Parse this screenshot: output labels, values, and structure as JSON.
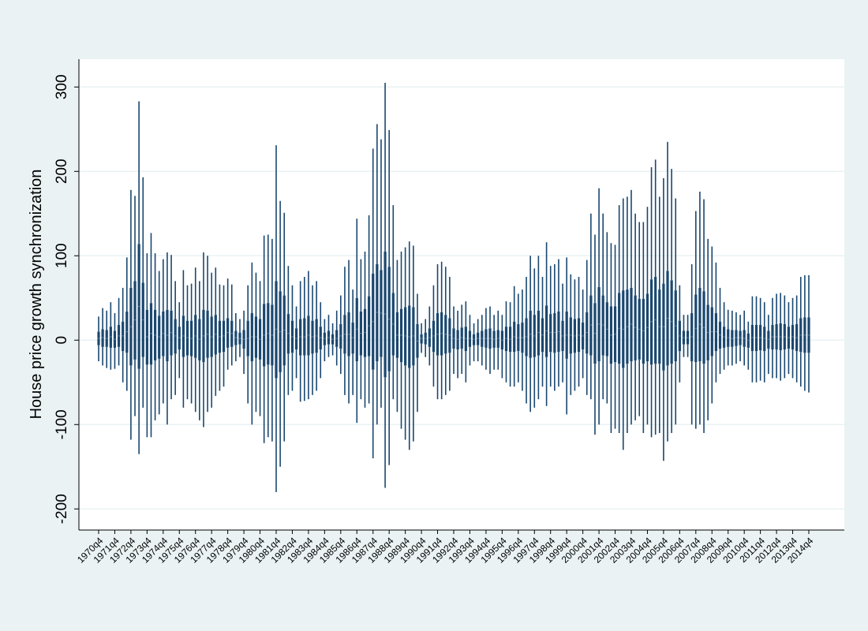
{
  "chart_data": {
    "type": "box",
    "ylabel": "House price growth synchronization",
    "color": "#1a476f",
    "grid": true,
    "ylim": [
      -225,
      333
    ],
    "yticks": [
      -200,
      -100,
      0,
      100,
      200,
      300
    ],
    "categories": [
      "1970q4",
      null,
      null,
      null,
      "1971q4",
      null,
      null,
      null,
      "1972q4",
      null,
      null,
      null,
      "1973q4",
      null,
      null,
      null,
      "1974q4",
      null,
      null,
      null,
      "1975q4",
      null,
      null,
      null,
      "1976q4",
      null,
      null,
      null,
      "1977q4",
      null,
      null,
      null,
      "1978q4",
      null,
      null,
      null,
      "1979q4",
      null,
      null,
      null,
      "1980q4",
      null,
      null,
      null,
      "1981q4",
      null,
      null,
      null,
      "1982q4",
      null,
      null,
      null,
      "1983q4",
      null,
      null,
      null,
      "1984q4",
      null,
      null,
      null,
      "1985q4",
      null,
      null,
      null,
      "1986q4",
      null,
      null,
      null,
      "1987q4",
      null,
      null,
      null,
      "1988q4",
      null,
      null,
      null,
      "1989q4",
      null,
      null,
      null,
      "1990q4",
      null,
      null,
      null,
      "1991q4",
      null,
      null,
      null,
      "1992q4",
      null,
      null,
      null,
      "1993q4",
      null,
      null,
      null,
      "1994q4",
      null,
      null,
      null,
      "1995q4",
      null,
      null,
      null,
      "1996q4",
      null,
      null,
      null,
      "1997q4",
      null,
      null,
      null,
      "1998q4",
      null,
      null,
      null,
      "1999q4",
      null,
      null,
      null,
      "2000q4",
      null,
      null,
      null,
      "2001q4",
      null,
      null,
      null,
      "2002q4",
      null,
      null,
      null,
      "2003q4",
      null,
      null,
      null,
      "2004q4",
      null,
      null,
      null,
      "2005q4",
      null,
      null,
      null,
      "2006q4",
      null,
      null,
      null,
      "2007q4",
      null,
      null,
      null,
      "2008q4",
      null,
      null,
      null,
      "2009q4",
      null,
      null,
      null,
      "2010q4",
      null,
      null,
      null,
      "2011q4",
      null,
      null,
      null,
      "2012q4",
      null,
      null,
      null,
      "2013q4",
      null,
      null,
      null,
      "2014q4"
    ],
    "max": [
      28,
      38,
      35,
      45,
      32,
      50,
      62,
      98,
      178,
      171,
      283,
      193,
      103,
      127,
      103,
      82,
      96,
      104,
      101,
      70,
      45,
      83,
      65,
      67,
      86,
      70,
      104,
      100,
      80,
      86,
      66,
      65,
      73,
      66,
      32,
      25,
      35,
      65,
      92,
      80,
      70,
      124,
      125,
      120,
      231,
      165,
      151,
      88,
      65,
      40,
      70,
      75,
      82,
      65,
      70,
      45,
      25,
      30,
      20,
      35,
      53,
      87,
      95,
      60,
      144,
      96,
      105,
      148,
      227,
      256,
      238,
      305,
      249,
      160,
      95,
      105,
      110,
      117,
      112,
      55,
      20,
      25,
      40,
      65,
      90,
      93,
      87,
      75,
      40,
      35,
      42,
      46,
      30,
      20,
      25,
      30,
      38,
      40,
      30,
      35,
      30,
      46,
      45,
      64,
      55,
      60,
      75,
      100,
      85,
      100,
      75,
      116,
      88,
      90,
      96,
      67,
      98,
      78,
      72,
      75,
      60,
      95,
      150,
      125,
      180,
      150,
      128,
      115,
      113,
      160,
      168,
      170,
      178,
      150,
      140,
      140,
      158,
      205,
      214,
      170,
      192,
      235,
      203,
      168,
      65,
      30,
      30,
      90,
      153,
      176,
      167,
      120,
      111,
      92,
      62,
      45,
      36,
      35,
      33,
      30,
      35,
      22,
      52,
      52,
      50,
      45,
      30,
      50,
      55,
      56,
      53,
      45,
      50,
      53,
      75,
      77,
      77
    ],
    "q3": [
      10,
      13,
      12,
      16,
      11,
      18,
      22,
      34,
      62,
      70,
      114,
      68,
      36,
      44,
      36,
      29,
      34,
      36,
      35,
      25,
      16,
      29,
      23,
      23,
      30,
      25,
      36,
      35,
      28,
      30,
      23,
      23,
      26,
      23,
      11,
      9,
      12,
      23,
      32,
      28,
      25,
      43,
      44,
      42,
      70,
      58,
      53,
      31,
      23,
      14,
      25,
      26,
      29,
      23,
      25,
      16,
      9,
      11,
      7,
      12,
      19,
      30,
      33,
      21,
      50,
      34,
      37,
      52,
      79,
      90,
      83,
      105,
      87,
      56,
      33,
      37,
      39,
      41,
      39,
      19,
      7,
      9,
      14,
      23,
      32,
      33,
      30,
      26,
      14,
      12,
      15,
      16,
      11,
      7,
      9,
      11,
      13,
      14,
      11,
      12,
      11,
      16,
      16,
      22,
      19,
      21,
      26,
      35,
      30,
      35,
      26,
      41,
      31,
      32,
      34,
      23,
      34,
      27,
      25,
      26,
      21,
      33,
      53,
      44,
      63,
      53,
      45,
      40,
      40,
      56,
      59,
      60,
      62,
      53,
      49,
      49,
      55,
      72,
      75,
      60,
      67,
      82,
      71,
      59,
      23,
      11,
      11,
      32,
      54,
      62,
      58,
      42,
      39,
      32,
      22,
      16,
      13,
      12,
      12,
      11,
      12,
      8,
      18,
      18,
      18,
      16,
      11,
      18,
      19,
      20,
      19,
      16,
      18,
      19,
      26,
      27,
      27
    ],
    "median": [
      2,
      3,
      2,
      4,
      1,
      5,
      5,
      10,
      16,
      24,
      40,
      24,
      4,
      8,
      6,
      4,
      8,
      6,
      9,
      5,
      3,
      5,
      3,
      2,
      5,
      1,
      5,
      7,
      4,
      7,
      4,
      5,
      9,
      8,
      3,
      2,
      1,
      2,
      4,
      4,
      1,
      6,
      8,
      6,
      13,
      10,
      12,
      8,
      4,
      2,
      4,
      4,
      6,
      4,
      5,
      3,
      2,
      3,
      1,
      2,
      5,
      7,
      7,
      3,
      13,
      8,
      9,
      17,
      22,
      33,
      32,
      31,
      25,
      19,
      6,
      6,
      5,
      4,
      5,
      -1,
      2,
      2,
      3,
      5,
      7,
      8,
      7,
      6,
      2,
      1,
      3,
      2,
      2,
      1,
      2,
      2,
      2,
      2,
      1,
      2,
      0,
      2,
      1,
      4,
      3,
      3,
      4,
      7,
      5,
      9,
      6,
      11,
      9,
      9,
      10,
      5,
      6,
      6,
      5,
      6,
      5,
      9,
      18,
      8,
      19,
      18,
      13,
      6,
      7,
      14,
      13,
      16,
      19,
      15,
      13,
      11,
      15,
      22,
      24,
      16,
      16,
      26,
      22,
      17,
      5,
      3,
      3,
      4,
      14,
      19,
      15,
      9,
      10,
      10,
      6,
      4,
      3,
      2,
      3,
      3,
      2,
      0,
      3,
      3,
      3,
      2,
      1,
      4,
      4,
      4,
      4,
      3,
      4,
      3,
      6,
      6,
      6
    ],
    "q1": [
      -6,
      -8,
      -8,
      -9,
      -9,
      -8,
      -13,
      -15,
      -30,
      -23,
      -34,
      -20,
      -29,
      -29,
      -24,
      -22,
      -19,
      -25,
      -18,
      -16,
      -11,
      -20,
      -18,
      -19,
      -21,
      -24,
      -26,
      -21,
      -20,
      -17,
      -15,
      -14,
      -9,
      -8,
      -6,
      -5,
      -10,
      -19,
      -25,
      -21,
      -23,
      -31,
      -29,
      -30,
      -45,
      -38,
      -30,
      -16,
      -15,
      -11,
      -18,
      -18,
      -18,
      -16,
      -15,
      -11,
      -6,
      -5,
      -5,
      -8,
      -10,
      -16,
      -19,
      -16,
      -25,
      -18,
      -20,
      -19,
      -35,
      -25,
      -20,
      -44,
      -37,
      -18,
      -21,
      -26,
      -30,
      -33,
      -30,
      -21,
      -4,
      -5,
      -8,
      -14,
      -18,
      -18,
      -16,
      -15,
      -10,
      -11,
      -10,
      -13,
      -8,
      -6,
      -6,
      -8,
      -9,
      -10,
      -9,
      -9,
      -11,
      -13,
      -14,
      -14,
      -13,
      -15,
      -19,
      -21,
      -20,
      -18,
      -14,
      -20,
      -14,
      -15,
      -14,
      -13,
      -22,
      -16,
      -15,
      -14,
      -11,
      -16,
      -18,
      -28,
      -25,
      -18,
      -19,
      -28,
      -26,
      -28,
      -33,
      -28,
      -25,
      -24,
      -23,
      -28,
      -25,
      -29,
      -28,
      -28,
      -36,
      -30,
      -28,
      -25,
      -13,
      -5,
      -5,
      -25,
      -26,
      -25,
      -28,
      -24,
      -19,
      -13,
      -10,
      -9,
      -8,
      -8,
      -7,
      -6,
      -8,
      -9,
      -13,
      -13,
      -12,
      -13,
      -10,
      -11,
      -11,
      -12,
      -11,
      -10,
      -11,
      -13,
      -14,
      -15,
      -15
    ],
    "min": [
      -25,
      -30,
      -33,
      -35,
      -34,
      -30,
      -50,
      -60,
      -118,
      -90,
      -135,
      -80,
      -115,
      -115,
      -95,
      -88,
      -75,
      -100,
      -70,
      -65,
      -45,
      -80,
      -70,
      -75,
      -85,
      -95,
      -103,
      -85,
      -80,
      -66,
      -60,
      -55,
      -35,
      -30,
      -25,
      -20,
      -40,
      -75,
      -100,
      -85,
      -90,
      -122,
      -115,
      -120,
      -180,
      -150,
      -120,
      -65,
      -60,
      -45,
      -73,
      -72,
      -70,
      -65,
      -60,
      -45,
      -25,
      -20,
      -18,
      -30,
      -40,
      -65,
      -75,
      -65,
      -98,
      -70,
      -80,
      -75,
      -140,
      -100,
      -80,
      -175,
      -148,
      -70,
      -85,
      -105,
      -118,
      -130,
      -120,
      -85,
      -15,
      -20,
      -30,
      -55,
      -70,
      -70,
      -65,
      -60,
      -40,
      -45,
      -40,
      -50,
      -30,
      -25,
      -25,
      -30,
      -35,
      -40,
      -35,
      -35,
      -45,
      -50,
      -55,
      -55,
      -50,
      -60,
      -75,
      -85,
      -80,
      -70,
      -55,
      -78,
      -55,
      -60,
      -55,
      -50,
      -88,
      -65,
      -60,
      -55,
      -45,
      -65,
      -70,
      -112,
      -100,
      -70,
      -75,
      -110,
      -105,
      -110,
      -130,
      -110,
      -100,
      -95,
      -90,
      -110,
      -100,
      -115,
      -112,
      -110,
      -143,
      -120,
      -110,
      -100,
      -50,
      -20,
      -20,
      -100,
      -105,
      -100,
      -110,
      -95,
      -75,
      -50,
      -40,
      -35,
      -30,
      -30,
      -28,
      -25,
      -30,
      -35,
      -50,
      -50,
      -48,
      -50,
      -40,
      -45,
      -45,
      -48,
      -45,
      -40,
      -45,
      -50,
      -55,
      -60,
      -62
    ]
  }
}
